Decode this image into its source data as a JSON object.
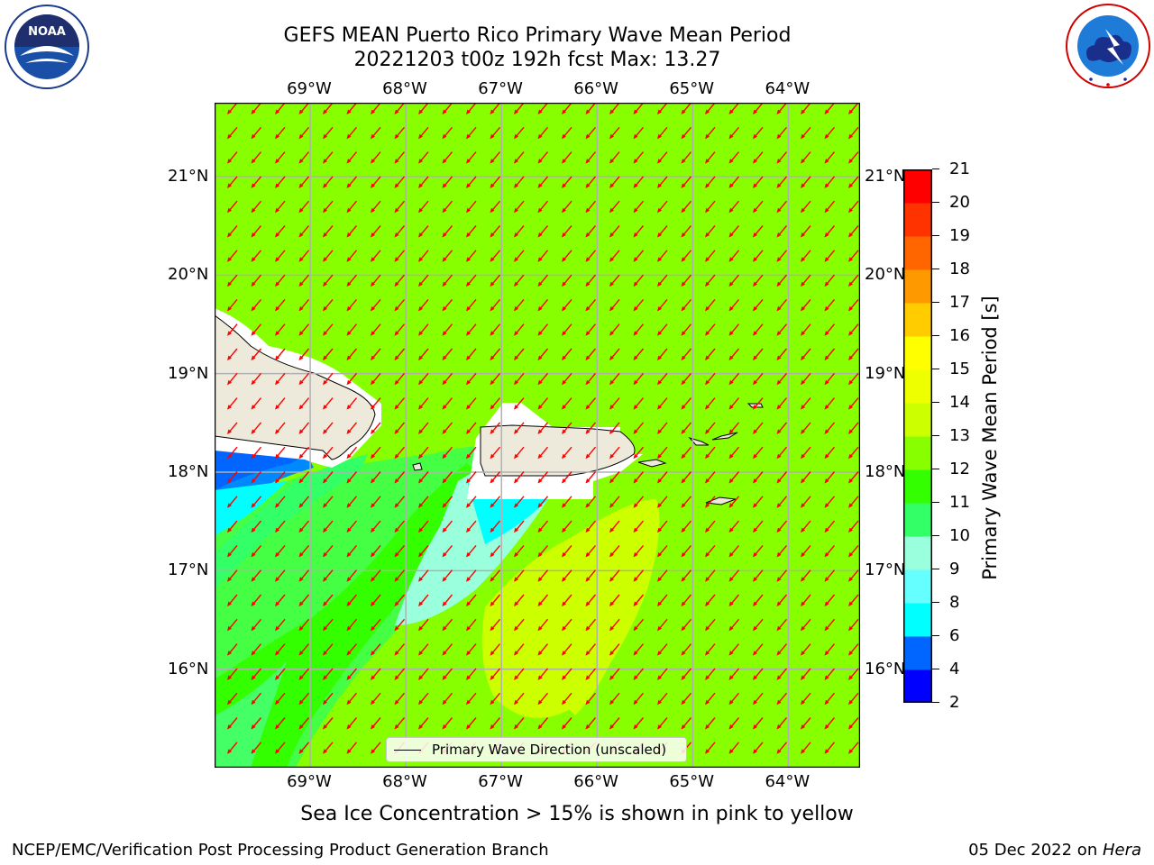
{
  "title": {
    "line1": "GEFS MEAN Puerto Rico Primary Wave Mean Period",
    "line2": "20221203 t00z 192h fcst   Max: 13.27"
  },
  "logos": {
    "left": {
      "icon": "noaa-logo",
      "text": "NOAA"
    },
    "right": {
      "icon": "nws-logo",
      "ring_text": "NATIONAL WEATHER SERVICE"
    }
  },
  "map": {
    "lon_labels": [
      "69°W",
      "68°W",
      "67°W",
      "66°W",
      "65°W",
      "64°W"
    ],
    "lon_values": [
      -69,
      -68,
      -67,
      -66,
      -65,
      -64
    ],
    "lat_labels": [
      "21°N",
      "20°N",
      "19°N",
      "18°N",
      "17°N",
      "16°N"
    ],
    "lat_values": [
      21,
      20,
      19,
      18,
      17,
      16
    ],
    "extent": {
      "lon_min": -70,
      "lon_max": -63.25,
      "lat_min": 15.0,
      "lat_max": 21.75
    },
    "background_period_s": 12.5,
    "arrow_direction": "pointing southwest",
    "arrow_color": "#ff0000",
    "legend_label": "Primary Wave Direction (unscaled)"
  },
  "colorbar": {
    "title": "Primary Wave Mean Period [s]",
    "ticks": [
      2,
      4,
      6,
      8,
      9,
      10,
      11,
      12,
      13,
      14,
      15,
      16,
      17,
      18,
      19,
      20,
      21
    ],
    "colors": [
      "#0000ff",
      "#0066ff",
      "#00ffff",
      "#66ffff",
      "#99ffdd",
      "#33ff66",
      "#33ff00",
      "#88ff00",
      "#ccff00",
      "#eeff00",
      "#ffff00",
      "#ffcc00",
      "#ff9900",
      "#ff6600",
      "#ff3300",
      "#ff0000"
    ]
  },
  "note": "Sea Ice Concentration > 15% is shown in pink to yellow",
  "footer": {
    "left": "NCEP/EMC/Verification Post Processing Product Generation Branch",
    "date": "05 Dec 2022 on ",
    "machine": "Hera"
  }
}
